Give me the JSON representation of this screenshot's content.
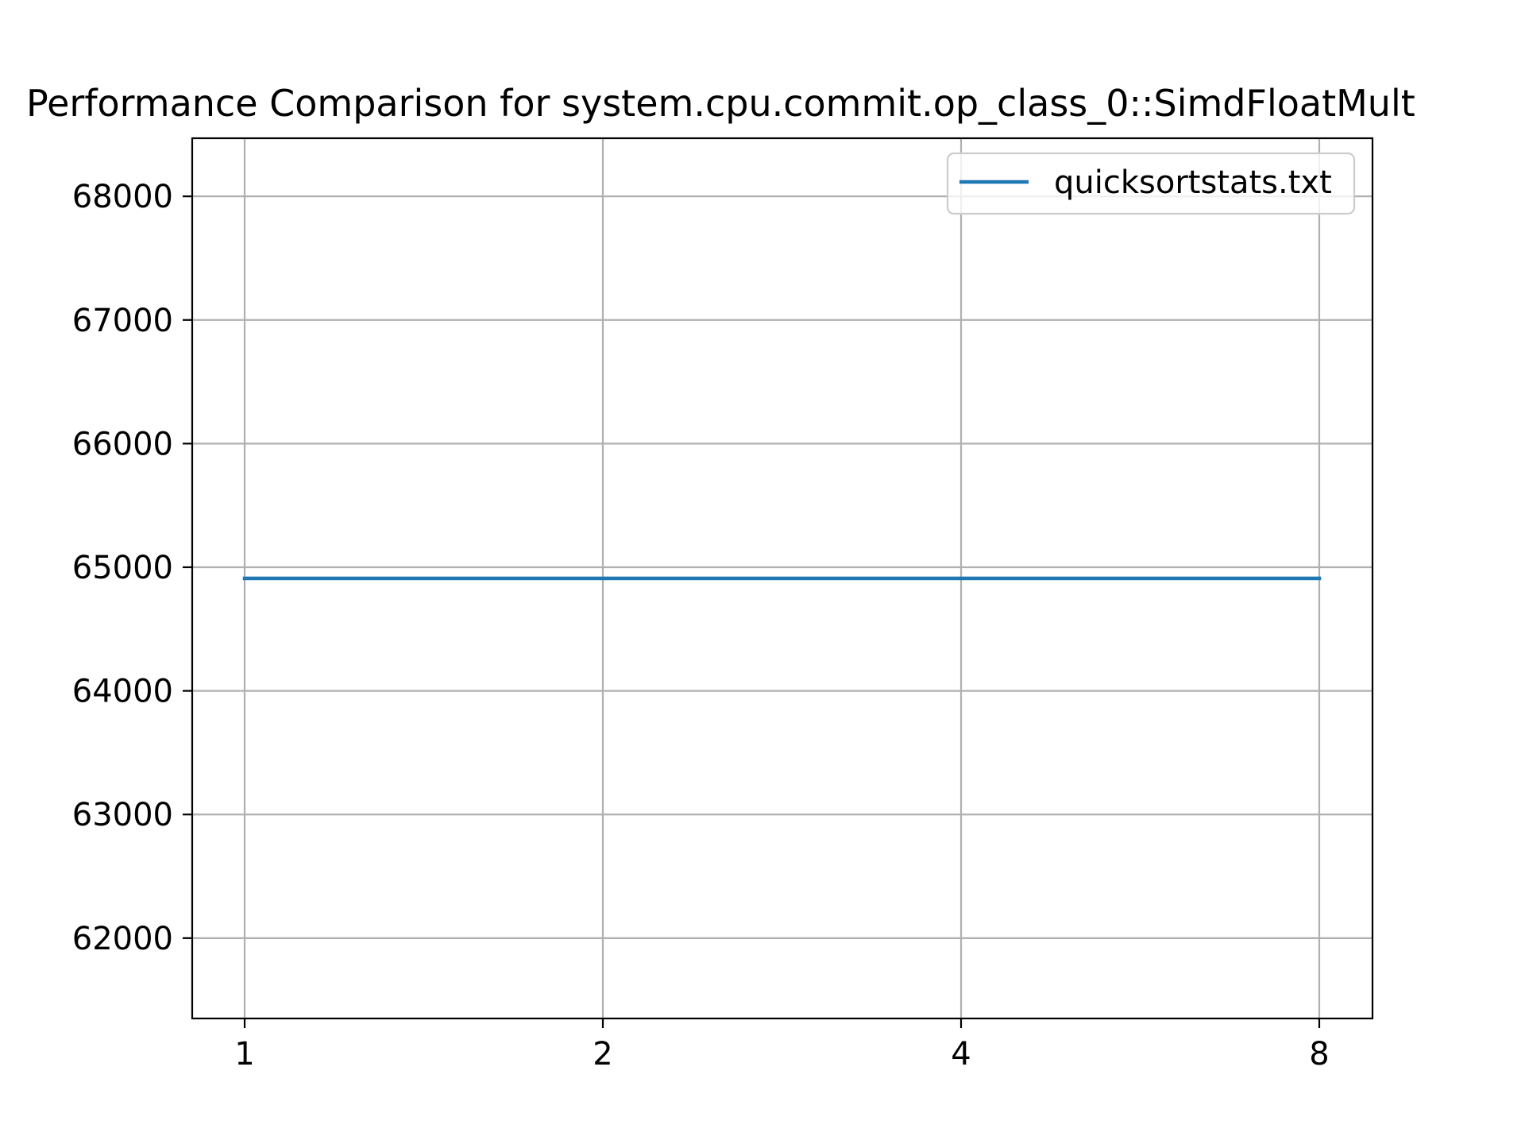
{
  "chart_data": {
    "type": "line",
    "title": "Performance Comparison for system.cpu.commit.op_class_0::SimdFloatMult",
    "xlabel": "",
    "ylabel": "",
    "x": [
      "1",
      "2",
      "4",
      "8"
    ],
    "x_scale": "categorical",
    "xticks": [
      "1",
      "2",
      "4",
      "8"
    ],
    "yticks": [
      "62000",
      "63000",
      "64000",
      "65000",
      "66000",
      "67000",
      "68000"
    ],
    "ylim": [
      61350,
      68470
    ],
    "grid": true,
    "legend_position": "upper-right",
    "series": [
      {
        "name": "quicksortstats.txt",
        "color": "#1f77b4",
        "values": [
          64910,
          64910,
          64910,
          64910
        ]
      }
    ]
  }
}
